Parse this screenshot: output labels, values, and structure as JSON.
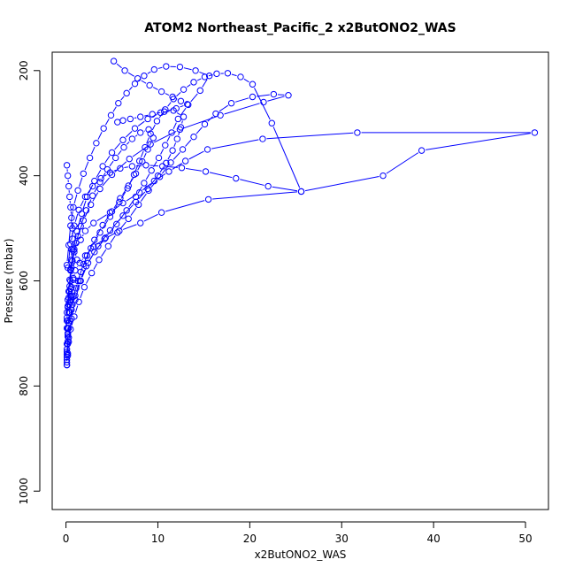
{
  "chart_data": {
    "type": "line",
    "title": "ATOM2 Northeast_Pacific_2 x2ButONO2_WAS",
    "xlabel": "x2ButONO2_WAS",
    "ylabel": "Pressure (mbar)",
    "xlim": [
      -1.5,
      52.5
    ],
    "ylim": [
      1035,
      165
    ],
    "y_reversed": true,
    "x_ticks": [
      0,
      10,
      20,
      30,
      40,
      50
    ],
    "y_ticks": [
      200,
      400,
      600,
      800,
      1000
    ],
    "grid": false,
    "legend": "none",
    "series_color": "#0000ff",
    "series": [
      {
        "x": [
          0.1,
          0.1,
          0.2,
          0.1,
          0.2,
          0.2,
          0.3,
          0.2,
          0.4,
          0.3,
          0.5,
          0.6,
          0.8,
          0.5,
          1.2,
          0.9,
          1.6,
          2.1,
          3.0,
          4.8,
          6.2,
          8.0,
          9.6,
          11.2,
          13.0,
          15.4,
          21.4,
          31.7,
          51.0,
          38.7,
          34.5,
          25.6,
          15.5,
          10.4,
          8.1,
          5.8,
          4.2,
          3.0,
          2.1,
          1.5,
          1.0,
          0.8,
          0.5,
          0.3,
          0.2,
          0.1,
          0.1
        ],
        "y": [
          760,
          750,
          742,
          730,
          715,
          700,
          690,
          675,
          660,
          645,
          628,
          612,
          595,
          578,
          560,
          540,
          522,
          505,
          490,
          470,
          452,
          432,
          410,
          392,
          372,
          350,
          330,
          318,
          318,
          352,
          400,
          430,
          445,
          470,
          490,
          505,
          520,
          535,
          552,
          566,
          580,
          598,
          615,
          632,
          648,
          670,
          690
        ]
      },
      {
        "x": [
          0.1,
          0.2,
          0.3,
          0.5,
          0.9,
          1.4,
          2.0,
          2.8,
          3.6,
          4.6,
          5.6,
          6.8,
          7.9,
          9.0,
          10.2,
          11.4,
          12.7,
          13.9,
          15.1,
          16.3,
          18.0,
          20.3,
          22.6,
          24.2,
          21.5,
          16.8,
          12.4,
          9.2,
          6.9,
          5.0,
          3.7,
          2.7,
          1.9,
          1.3,
          0.9,
          0.6,
          0.4,
          0.2
        ],
        "y": [
          755,
          738,
          716,
          692,
          668,
          640,
          612,
          585,
          560,
          534,
          508,
          482,
          455,
          428,
          402,
          375,
          350,
          326,
          302,
          282,
          262,
          250,
          245,
          247,
          260,
          285,
          312,
          340,
          368,
          398,
          425,
          455,
          485,
          515,
          545,
          575,
          610,
          650
        ]
      },
      {
        "x": [
          0.1,
          0.2,
          0.3,
          0.6,
          1.0,
          1.5,
          2.2,
          3.1,
          4.3,
          5.5,
          6.6,
          7.6,
          8.5,
          9.3,
          10.1,
          10.8,
          11.5,
          12.2,
          13.3,
          14.6,
          15.6,
          14.1,
          12.4,
          10.9,
          9.6,
          8.5,
          7.5,
          6.6,
          5.7,
          4.9,
          4.1,
          3.3,
          2.6,
          1.9,
          1.3,
          0.8,
          0.5,
          0.3,
          0.1
        ],
        "y": [
          720,
          702,
          680,
          655,
          628,
          600,
          572,
          545,
          518,
          492,
          466,
          440,
          414,
          390,
          366,
          342,
          318,
          292,
          265,
          238,
          210,
          200,
          193,
          192,
          198,
          210,
          225,
          243,
          262,
          285,
          310,
          338,
          366,
          396,
          428,
          460,
          495,
          532,
          570
        ]
      },
      {
        "x": [
          0.2,
          0.4,
          0.8,
          1.3,
          1.9,
          2.7,
          3.7,
          4.8,
          5.8,
          6.7,
          7.4,
          8.0,
          8.6,
          9.2,
          9.9,
          10.8,
          11.7,
          12.8,
          13.9,
          15.1,
          16.4,
          17.6,
          19.0,
          20.3,
          22.4,
          25.6,
          22.0,
          18.5,
          15.2,
          12.6,
          10.5,
          8.7,
          7.2,
          5.9,
          4.8,
          3.8,
          2.9,
          2.1,
          1.4,
          0.9,
          0.5,
          0.2
        ],
        "y": [
          690,
          660,
          630,
          600,
          568,
          538,
          508,
          478,
          450,
          424,
          398,
          372,
          346,
          320,
          296,
          274,
          254,
          236,
          222,
          212,
          206,
          205,
          212,
          226,
          300,
          430,
          420,
          405,
          392,
          385,
          382,
          380,
          382,
          386,
          394,
          405,
          420,
          440,
          465,
          495,
          530,
          575
        ]
      },
      {
        "x": [
          0.1,
          0.3,
          0.6,
          1.0,
          1.6,
          2.4,
          3.5,
          4.8,
          6.2,
          7.6,
          8.9,
          10.0,
          10.9,
          11.6,
          12.1,
          12.5,
          12.8,
          11.7,
          10.3,
          8.9,
          7.5,
          6.2,
          5.0,
          4.0,
          3.1,
          2.3,
          1.7,
          1.2,
          0.8,
          0.5,
          0.3,
          0.1
        ],
        "y": [
          745,
          708,
          672,
          636,
          600,
          566,
          534,
          504,
          476,
          450,
          425,
          400,
          376,
          352,
          330,
          308,
          288,
          276,
          280,
          292,
          310,
          332,
          356,
          382,
          410,
          440,
          472,
          506,
          542,
          580,
          620,
          660
        ]
      },
      {
        "x": [
          0.1,
          0.2,
          0.4,
          0.7,
          1.1,
          1.6,
          2.3,
          3.1,
          4.0,
          5.0,
          5.9,
          6.8,
          7.6,
          8.3,
          8.9,
          9.5,
          9.0,
          8.1,
          7.2,
          6.3,
          5.4,
          4.5,
          3.7,
          2.9,
          2.2,
          1.6,
          1.1,
          0.7,
          0.4,
          0.2,
          0.1
        ],
        "y": [
          735,
          706,
          676,
          645,
          614,
          583,
          552,
          522,
          494,
          468,
          443,
          419,
          396,
          373,
          350,
          328,
          312,
          318,
          330,
          346,
          366,
          388,
          412,
          438,
          466,
          496,
          528,
          562,
          598,
          636,
          676
        ]
      },
      {
        "x": [
          0.1,
          0.1,
          0.2,
          0.2,
          0.3,
          0.3,
          0.4,
          0.4,
          0.5,
          0.5,
          0.6,
          0.6,
          0.7,
          0.7,
          0.6,
          0.5,
          0.4,
          0.3,
          0.2,
          0.1
        ],
        "y": [
          760,
          740,
          720,
          700,
          680,
          660,
          640,
          620,
          600,
          580,
          560,
          540,
          520,
          500,
          480,
          460,
          440,
          420,
          400,
          380
        ]
      },
      {
        "x": [
          5.2,
          6.4,
          7.8,
          9.1,
          10.4,
          11.6,
          12.5,
          13.2,
          12.0,
          10.7,
          9.4,
          8.1,
          7.0,
          6.2,
          5.6
        ],
        "y": [
          182,
          200,
          215,
          228,
          240,
          250,
          258,
          264,
          272,
          278,
          283,
          288,
          292,
          295,
          298
        ]
      }
    ]
  }
}
